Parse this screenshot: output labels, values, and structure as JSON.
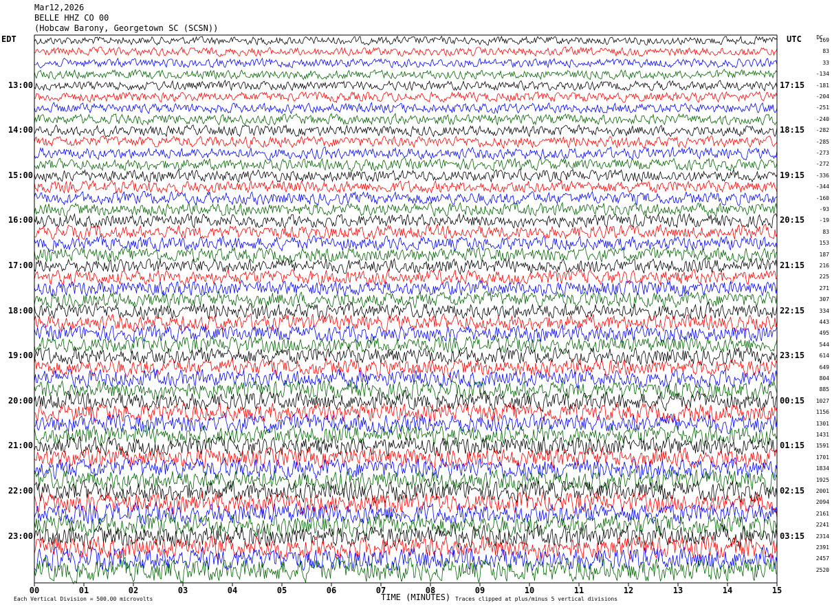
{
  "header": {
    "line1": "Mar12,2026",
    "line2": "BELLE HHZ CO 00",
    "line3": "(Hobcaw Barony, Georgetown SC (SCSN))"
  },
  "left_axis_title": "EDT",
  "right_axis_title": "UTC",
  "dc_title": "DC",
  "footer": {
    "left": "Each Vertical Division =  500.00 microvolts",
    "center": "TIME (MINUTES)",
    "right": "Traces clipped at plus/minus 5 vertical divisions"
  },
  "colors": {
    "trace_cycle": [
      "#000000",
      "#ff0000",
      "#0000ff",
      "#006400"
    ]
  },
  "chart_data": {
    "type": "line",
    "xlabel": "TIME (MINUTES)",
    "xlim": [
      0,
      15
    ],
    "x_tick_labels": [
      "00",
      "01",
      "02",
      "03",
      "04",
      "05",
      "06",
      "07",
      "08",
      "09",
      "10",
      "11",
      "12",
      "13",
      "14",
      "15"
    ],
    "left_time_labels": [
      "13:00",
      "14:00",
      "15:00",
      "16:00",
      "17:00",
      "18:00",
      "19:00",
      "20:00",
      "21:00",
      "22:00",
      "23:00"
    ],
    "right_time_labels": [
      "17:15",
      "18:15",
      "19:15",
      "20:15",
      "21:15",
      "22:15",
      "23:15",
      "00:15",
      "01:15",
      "02:15",
      "03:15"
    ],
    "trace_dc_offsets": [
      169,
      83,
      33,
      -134,
      -181,
      -204,
      -251,
      -240,
      -282,
      -285,
      -273,
      -272,
      -336,
      -344,
      -160,
      -93,
      -19,
      83,
      153,
      187,
      216,
      225,
      271,
      307,
      334,
      443,
      495,
      544,
      614,
      649,
      804,
      885,
      1027,
      1156,
      1301,
      1431,
      1591,
      1701,
      1834,
      1925,
      2001,
      2094,
      2161,
      2241,
      2314,
      2391,
      2457,
      2520
    ],
    "trace_count": 48,
    "minutes_per_trace": 15
  }
}
